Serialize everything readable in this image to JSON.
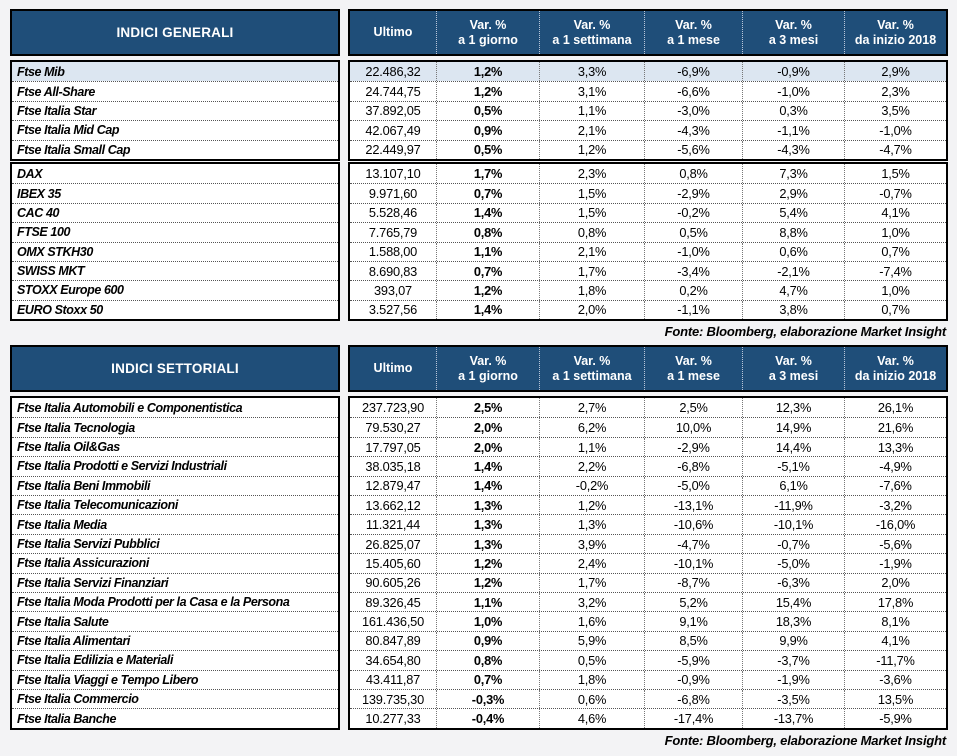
{
  "colors": {
    "header_bg": "#1f4e79",
    "header_text": "#ffffff",
    "highlight_row": "#dce6f1",
    "border": "#000000",
    "page_bg": "#f3f3f5"
  },
  "columns": {
    "ultimo": "Ultimo",
    "var_label": "Var. %",
    "periods": [
      "a 1 giorno",
      "a 1 settimana",
      "a 1 mese",
      "a 3 mesi",
      "da inizio 2018"
    ]
  },
  "tables": [
    {
      "title": "INDICI GENERALI",
      "source": "Fonte: Bloomberg, elaborazione Market Insight",
      "groups": [
        {
          "rows": [
            {
              "name": "Ftse Mib",
              "ultimo": "22.486,32",
              "vars": [
                "1,2%",
                "3,3%",
                "-6,9%",
                "-0,9%",
                "2,9%"
              ],
              "highlight": true
            },
            {
              "name": "Ftse All-Share",
              "ultimo": "24.744,75",
              "vars": [
                "1,2%",
                "3,1%",
                "-6,6%",
                "-1,0%",
                "2,3%"
              ],
              "highlight": false
            },
            {
              "name": "Ftse Italia Star",
              "ultimo": "37.892,05",
              "vars": [
                "0,5%",
                "1,1%",
                "-3,0%",
                "0,3%",
                "3,5%"
              ],
              "highlight": false
            },
            {
              "name": "Ftse Italia Mid Cap",
              "ultimo": "42.067,49",
              "vars": [
                "0,9%",
                "2,1%",
                "-4,3%",
                "-1,1%",
                "-1,0%"
              ],
              "highlight": false
            },
            {
              "name": "Ftse Italia Small Cap",
              "ultimo": "22.449,97",
              "vars": [
                "0,5%",
                "1,2%",
                "-5,6%",
                "-4,3%",
                "-4,7%"
              ],
              "highlight": false
            }
          ]
        },
        {
          "rows": [
            {
              "name": "DAX",
              "ultimo": "13.107,10",
              "vars": [
                "1,7%",
                "2,3%",
                "0,8%",
                "7,3%",
                "1,5%"
              ],
              "highlight": false
            },
            {
              "name": "IBEX 35",
              "ultimo": "9.971,60",
              "vars": [
                "0,7%",
                "1,5%",
                "-2,9%",
                "2,9%",
                "-0,7%"
              ],
              "highlight": false
            },
            {
              "name": "CAC 40",
              "ultimo": "5.528,46",
              "vars": [
                "1,4%",
                "1,5%",
                "-0,2%",
                "5,4%",
                "4,1%"
              ],
              "highlight": false
            },
            {
              "name": "FTSE 100",
              "ultimo": "7.765,79",
              "vars": [
                "0,8%",
                "0,8%",
                "0,5%",
                "8,8%",
                "1,0%"
              ],
              "highlight": false
            },
            {
              "name": "OMX STKH30",
              "ultimo": "1.588,00",
              "vars": [
                "1,1%",
                "2,1%",
                "-1,0%",
                "0,6%",
                "0,7%"
              ],
              "highlight": false
            },
            {
              "name": "SWISS MKT",
              "ultimo": "8.690,83",
              "vars": [
                "0,7%",
                "1,7%",
                "-3,4%",
                "-2,1%",
                "-7,4%"
              ],
              "highlight": false
            },
            {
              "name": "STOXX Europe 600",
              "ultimo": "393,07",
              "vars": [
                "1,2%",
                "1,8%",
                "0,2%",
                "4,7%",
                "1,0%"
              ],
              "highlight": false
            },
            {
              "name": "EURO Stoxx 50",
              "ultimo": "3.527,56",
              "vars": [
                "1,4%",
                "2,0%",
                "-1,1%",
                "3,8%",
                "0,7%"
              ],
              "highlight": false
            }
          ]
        }
      ]
    },
    {
      "title": "INDICI SETTORIALI",
      "source": "Fonte: Bloomberg, elaborazione Market Insight",
      "groups": [
        {
          "rows": [
            {
              "name": "Ftse Italia Automobili e Componentistica",
              "ultimo": "237.723,90",
              "vars": [
                "2,5%",
                "2,7%",
                "2,5%",
                "12,3%",
                "26,1%"
              ],
              "highlight": false
            },
            {
              "name": "Ftse Italia Tecnologia",
              "ultimo": "79.530,27",
              "vars": [
                "2,0%",
                "6,2%",
                "10,0%",
                "14,9%",
                "21,6%"
              ],
              "highlight": false
            },
            {
              "name": "Ftse Italia Oil&Gas",
              "ultimo": "17.797,05",
              "vars": [
                "2,0%",
                "1,1%",
                "-2,9%",
                "14,4%",
                "13,3%"
              ],
              "highlight": false
            },
            {
              "name": "Ftse Italia Prodotti e Servizi Industriali",
              "ultimo": "38.035,18",
              "vars": [
                "1,4%",
                "2,2%",
                "-6,8%",
                "-5,1%",
                "-4,9%"
              ],
              "highlight": false
            },
            {
              "name": "Ftse Italia Beni Immobili",
              "ultimo": "12.879,47",
              "vars": [
                "1,4%",
                "-0,2%",
                "-5,0%",
                "6,1%",
                "-7,6%"
              ],
              "highlight": false
            },
            {
              "name": "Ftse Italia Telecomunicazioni",
              "ultimo": "13.662,12",
              "vars": [
                "1,3%",
                "1,2%",
                "-13,1%",
                "-11,9%",
                "-3,2%"
              ],
              "highlight": false
            },
            {
              "name": "Ftse Italia Media",
              "ultimo": "11.321,44",
              "vars": [
                "1,3%",
                "1,3%",
                "-10,6%",
                "-10,1%",
                "-16,0%"
              ],
              "highlight": false
            },
            {
              "name": "Ftse Italia Servizi Pubblici",
              "ultimo": "26.825,07",
              "vars": [
                "1,3%",
                "3,9%",
                "-4,7%",
                "-0,7%",
                "-5,6%"
              ],
              "highlight": false
            },
            {
              "name": "Ftse Italia Assicurazioni",
              "ultimo": "15.405,60",
              "vars": [
                "1,2%",
                "2,4%",
                "-10,1%",
                "-5,0%",
                "-1,9%"
              ],
              "highlight": false
            },
            {
              "name": "Ftse Italia Servizi Finanziari",
              "ultimo": "90.605,26",
              "vars": [
                "1,2%",
                "1,7%",
                "-8,7%",
                "-6,3%",
                "2,0%"
              ],
              "highlight": false
            },
            {
              "name": "Ftse Italia Moda Prodotti per la Casa e la Persona",
              "ultimo": "89.326,45",
              "vars": [
                "1,1%",
                "3,2%",
                "5,2%",
                "15,4%",
                "17,8%"
              ],
              "highlight": false
            },
            {
              "name": "Ftse Italia Salute",
              "ultimo": "161.436,50",
              "vars": [
                "1,0%",
                "1,6%",
                "9,1%",
                "18,3%",
                "8,1%"
              ],
              "highlight": false
            },
            {
              "name": "Ftse Italia Alimentari",
              "ultimo": "80.847,89",
              "vars": [
                "0,9%",
                "5,9%",
                "8,5%",
                "9,9%",
                "4,1%"
              ],
              "highlight": false
            },
            {
              "name": "Ftse Italia Edilizia e Materiali",
              "ultimo": "34.654,80",
              "vars": [
                "0,8%",
                "0,5%",
                "-5,9%",
                "-3,7%",
                "-11,7%"
              ],
              "highlight": false
            },
            {
              "name": "Ftse Italia Viaggi e Tempo Libero",
              "ultimo": "43.411,87",
              "vars": [
                "0,7%",
                "1,8%",
                "-0,9%",
                "-1,9%",
                "-3,6%"
              ],
              "highlight": false
            },
            {
              "name": "Ftse Italia Commercio",
              "ultimo": "139.735,30",
              "vars": [
                "-0,3%",
                "0,6%",
                "-6,8%",
                "-3,5%",
                "13,5%"
              ],
              "highlight": false
            },
            {
              "name": "Ftse Italia Banche",
              "ultimo": "10.277,33",
              "vars": [
                "-0,4%",
                "4,6%",
                "-17,4%",
                "-13,7%",
                "-5,9%"
              ],
              "highlight": false
            }
          ]
        }
      ]
    }
  ]
}
